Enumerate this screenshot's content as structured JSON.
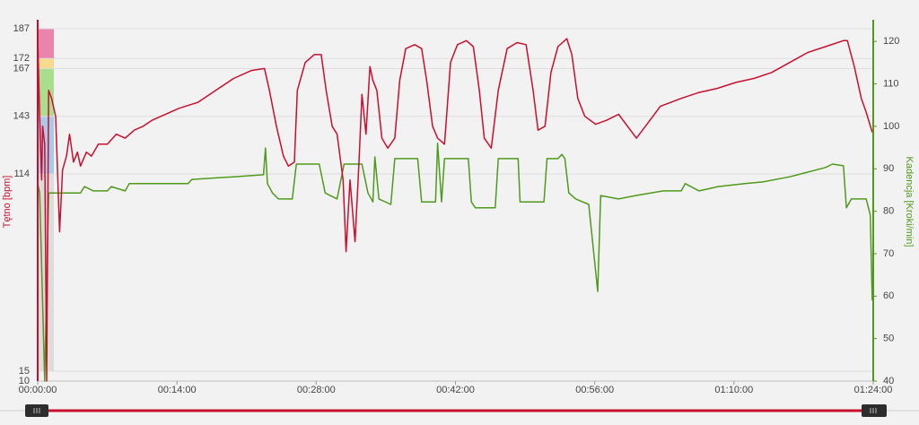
{
  "chart_data": {
    "type": "line",
    "ylabel": "Tętno [bpm]",
    "y2label": "Kadencja [Kroki/min]",
    "xlim": [
      0,
      84
    ],
    "xticks": [
      {
        "value": 0,
        "label": "00:00:00"
      },
      {
        "value": 14,
        "label": "00:14:00"
      },
      {
        "value": 28,
        "label": "00:28:00"
      },
      {
        "value": 42,
        "label": "00:42:00"
      },
      {
        "value": 56,
        "label": "00:56:00"
      },
      {
        "value": 70,
        "label": "01:10:00"
      },
      {
        "value": 84,
        "label": "01:24:00"
      }
    ],
    "ylim": [
      10,
      187
    ],
    "yticks": [
      10,
      15,
      114,
      143,
      167,
      172,
      187
    ],
    "y2lim": [
      40,
      123
    ],
    "y2ticks": [
      40,
      50,
      60,
      70,
      80,
      90,
      100,
      110,
      120
    ],
    "grid": true,
    "zones": [
      {
        "from": 172,
        "to": 187,
        "color": "#e985ab"
      },
      {
        "from": 167,
        "to": 172,
        "color": "#f8d98e"
      },
      {
        "from": 143,
        "to": 167,
        "color": "#a9de8f"
      },
      {
        "from": 114,
        "to": 143,
        "color": "#a9cbea"
      },
      {
        "from": 15,
        "to": 114,
        "color": "#dcdcdc"
      }
    ],
    "series": [
      {
        "color": "#c8102e",
        "axis": "y",
        "x": [
          0,
          0.2,
          0.4,
          0.5,
          0.7,
          0.9,
          1.1,
          1.4,
          1.8,
          2.2,
          2.5,
          2.9,
          3.2,
          3.6,
          4.0,
          4.3,
          4.9,
          5.4,
          6.1,
          7.0,
          7.9,
          8.8,
          9.7,
          10.6,
          11.5,
          12.4,
          14.2,
          16.1,
          17.9,
          19.7,
          21.5,
          22.8,
          23.3,
          24.0,
          24.7,
          25.2,
          25.8,
          26.1,
          26.9,
          27.8,
          28.5,
          29.0,
          29.6,
          30.1,
          30.7,
          31.0,
          31.4,
          31.9,
          32.3,
          32.6,
          33.0,
          33.4,
          33.7,
          34.1,
          34.6,
          35.2,
          35.9,
          36.4,
          37.0,
          37.9,
          38.6,
          39.1,
          39.7,
          40.2,
          40.9,
          41.5,
          42.2,
          43.1,
          43.8,
          44.4,
          44.9,
          45.6,
          46.3,
          47.2,
          48.2,
          49.1,
          49.8,
          50.3,
          51.0,
          51.6,
          52.3,
          53.2,
          53.7,
          54.3,
          55.0,
          56.1,
          57.2,
          58.4,
          59.3,
          60.2,
          61.1,
          62.6,
          64.7,
          66.5,
          68.3,
          70.2,
          72.0,
          73.8,
          75.6,
          77.4,
          79.2,
          81.0,
          81.4,
          82.1,
          82.8,
          83.3,
          83.9
        ],
        "values": [
          183,
          143,
          111,
          138,
          129,
          10,
          156,
          152,
          143,
          85,
          116,
          123,
          134,
          120,
          125,
          118,
          125,
          123,
          129,
          129,
          134,
          132,
          136,
          138,
          141,
          143,
          147,
          150,
          156,
          162,
          166,
          167,
          156,
          138,
          123,
          118,
          120,
          156,
          170,
          174,
          174,
          156,
          138,
          134,
          111,
          75,
          111,
          80,
          120,
          154,
          134,
          168,
          161,
          156,
          132,
          127,
          132,
          161,
          177,
          179,
          177,
          161,
          138,
          132,
          129,
          170,
          179,
          181,
          178,
          156,
          132,
          127,
          156,
          177,
          180,
          179,
          156,
          136,
          138,
          165,
          178,
          182,
          174,
          152,
          143,
          139,
          141,
          144,
          138,
          132,
          138,
          148,
          152,
          155,
          157,
          160,
          162,
          165,
          170,
          175,
          178,
          181,
          181,
          168,
          152,
          145,
          135
        ]
      },
      {
        "color": "#4f9a1c",
        "axis": "y2",
        "x": [
          0,
          0.2,
          0.7,
          1.1,
          4.3,
          4.7,
          5.6,
          7.0,
          7.4,
          8.8,
          9.2,
          15.1,
          15.5,
          19.7,
          22.7,
          22.9,
          23.1,
          23.6,
          24.2,
          25.6,
          26.0,
          28.3,
          28.9,
          30.1,
          30.8,
          32.6,
          33.2,
          33.7,
          33.9,
          34.3,
          35.5,
          35.9,
          38.2,
          38.6,
          40.0,
          40.2,
          40.6,
          40.9,
          43.3,
          43.6,
          44.0,
          46.0,
          46.3,
          48.3,
          48.5,
          50.9,
          51.2,
          52.3,
          52.7,
          53.0,
          53.4,
          54.1,
          55.4,
          56.3,
          56.6,
          58.4,
          60.1,
          62.9,
          64.7,
          65.1,
          66.5,
          68.4,
          71.1,
          72.9,
          75.6,
          77.4,
          79.2,
          79.9,
          81.0,
          81.3,
          81.8,
          83.3,
          83.7,
          83.9
        ],
        "values": [
          86.5,
          84.3,
          40,
          84.3,
          84.3,
          85.8,
          84.8,
          84.8,
          85.8,
          84.8,
          86.5,
          86.5,
          87.5,
          88.1,
          88.6,
          94.9,
          86.5,
          84.3,
          82.9,
          82.9,
          91.1,
          91.1,
          84.3,
          82.9,
          91.1,
          91.1,
          84.3,
          82.2,
          92.8,
          82.9,
          81.6,
          92.4,
          92.4,
          82.2,
          82.2,
          96.0,
          82.2,
          92.4,
          92.4,
          82.2,
          80.8,
          80.8,
          92.4,
          92.4,
          82.2,
          82.2,
          92.4,
          92.4,
          93.4,
          92.4,
          84.3,
          82.9,
          81.6,
          61.1,
          83.7,
          82.9,
          83.7,
          84.8,
          84.8,
          86.5,
          84.8,
          85.8,
          86.5,
          86.9,
          88.1,
          89.2,
          90.3,
          91.1,
          90.7,
          80.8,
          82.9,
          82.9,
          79.1,
          59.0
        ]
      }
    ]
  }
}
